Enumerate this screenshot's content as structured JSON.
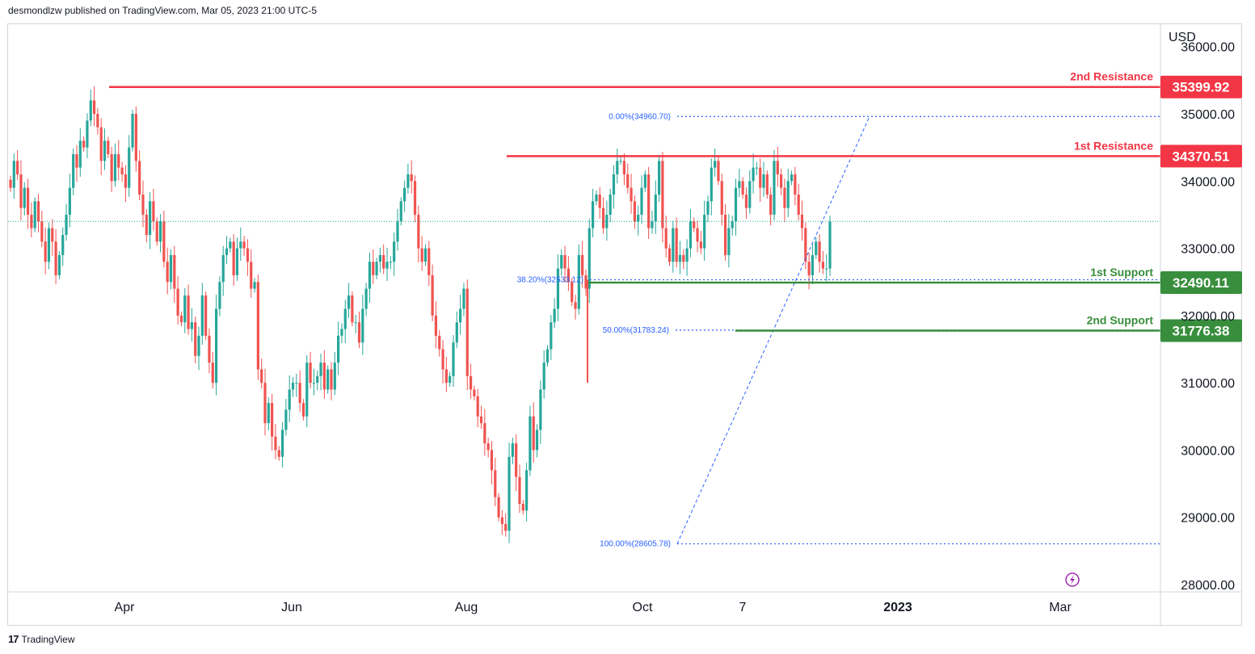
{
  "header": {
    "text": "desmondlzw published on TradingView.com, Mar 05, 2023 21:00 UTC-5"
  },
  "footer": {
    "logo_text": "17",
    "brand": "TradingView"
  },
  "colors": {
    "up": "#26a69a",
    "down": "#ef5350",
    "resistance": "#f23645",
    "support": "#388e3c",
    "fib": "#2962ff",
    "lightning": "#9c27b0"
  },
  "chart_data": {
    "type": "candlestick",
    "currency": "USD",
    "y_range": [
      27800,
      36200
    ],
    "y_ticks": [
      "28000.00",
      "29000.00",
      "30000.00",
      "31000.00",
      "32000.00",
      "33000.00",
      "34000.00",
      "35000.00",
      "36000.00"
    ],
    "x_tick_labels": [
      "Apr",
      "Jun",
      "Aug",
      "Oct",
      "7",
      "2023",
      "Mar"
    ],
    "last_price": 33400,
    "levels": [
      {
        "name": "2nd Resistance",
        "value": 35399.92,
        "label": "35399.92",
        "kind": "resistance"
      },
      {
        "name": "1st Resistance",
        "value": 34370.51,
        "label": "34370.51",
        "kind": "resistance"
      },
      {
        "name": "1st Support",
        "value": 32490.11,
        "label": "32490.11",
        "kind": "support"
      },
      {
        "name": "2nd Support",
        "value": 31776.38,
        "label": "31776.38",
        "kind": "support"
      }
    ],
    "fibonacci": [
      {
        "label": "0.00%(34960.70)",
        "value": 34960.7
      },
      {
        "label": "38.20%(32533.12)",
        "value": 32533.12
      },
      {
        "label": "50.00%(31783.24)",
        "value": 31783.24
      },
      {
        "label": "100.00%(28605.78)",
        "value": 28605.78
      }
    ],
    "candles_close": [
      33900,
      34300,
      34100,
      33600,
      33900,
      33500,
      33300,
      33700,
      33400,
      33100,
      32800,
      33300,
      33100,
      32600,
      32900,
      33200,
      33500,
      33900,
      34400,
      34200,
      34600,
      34500,
      34900,
      35200,
      35000,
      34800,
      34300,
      34600,
      34400,
      34000,
      34400,
      34200,
      34100,
      33900,
      34500,
      35000,
      34300,
      33800,
      33500,
      33200,
      33700,
      33400,
      33100,
      33400,
      32800,
      32500,
      32900,
      32400,
      32000,
      31900,
      32300,
      31800,
      31900,
      31400,
      31700,
      32300,
      31700,
      31300,
      31000,
      32100,
      32500,
      32900,
      33000,
      33100,
      32600,
      33000,
      33100,
      33000,
      32800,
      32400,
      32500,
      31200,
      31000,
      30400,
      30700,
      30200,
      30000,
      29900,
      30300,
      30600,
      30900,
      31000,
      31000,
      30700,
      30500,
      31300,
      31000,
      31000,
      31100,
      31300,
      30900,
      31200,
      30900,
      31300,
      31700,
      31800,
      32100,
      32300,
      31900,
      31900,
      31600,
      32100,
      32400,
      32800,
      32600,
      32800,
      32900,
      32700,
      32800,
      32800,
      33100,
      33400,
      33700,
      33900,
      34100,
      34000,
      33500,
      33000,
      32800,
      33000,
      32600,
      32000,
      31700,
      31500,
      31200,
      31000,
      31100,
      31600,
      31900,
      32100,
      32400,
      31100,
      30900,
      30800,
      30500,
      30400,
      30100,
      30000,
      29700,
      29300,
      29000,
      28900,
      28800,
      29900,
      30100,
      29600,
      29200,
      29100,
      29700,
      30500,
      30000,
      30300,
      30900,
      31300,
      31500,
      31900,
      32100,
      32700,
      32900,
      32700,
      32500,
      32200,
      32100,
      32900,
      32600,
      32400,
      33300,
      33700,
      33800,
      33600,
      33300,
      33500,
      33800,
      34100,
      34300,
      34300,
      34100,
      33900,
      33700,
      33400,
      33500,
      33900,
      34100,
      33300,
      33400,
      33800,
      34300,
      33300,
      33000,
      32800,
      33300,
      32800,
      32900,
      32800,
      33000,
      33400,
      33300,
      33100,
      33000,
      33500,
      33700,
      34200,
      34300,
      34000,
      33500,
      32900,
      33300,
      33400,
      33900,
      34000,
      33800,
      33600,
      34000,
      34200,
      34200,
      33900,
      34100,
      33800,
      33500,
      34300,
      34100,
      33900,
      33600,
      34000,
      34100,
      33800,
      33500,
      33300,
      32800,
      32600,
      32900,
      33100,
      32800,
      32700,
      32700,
      33400
    ]
  }
}
